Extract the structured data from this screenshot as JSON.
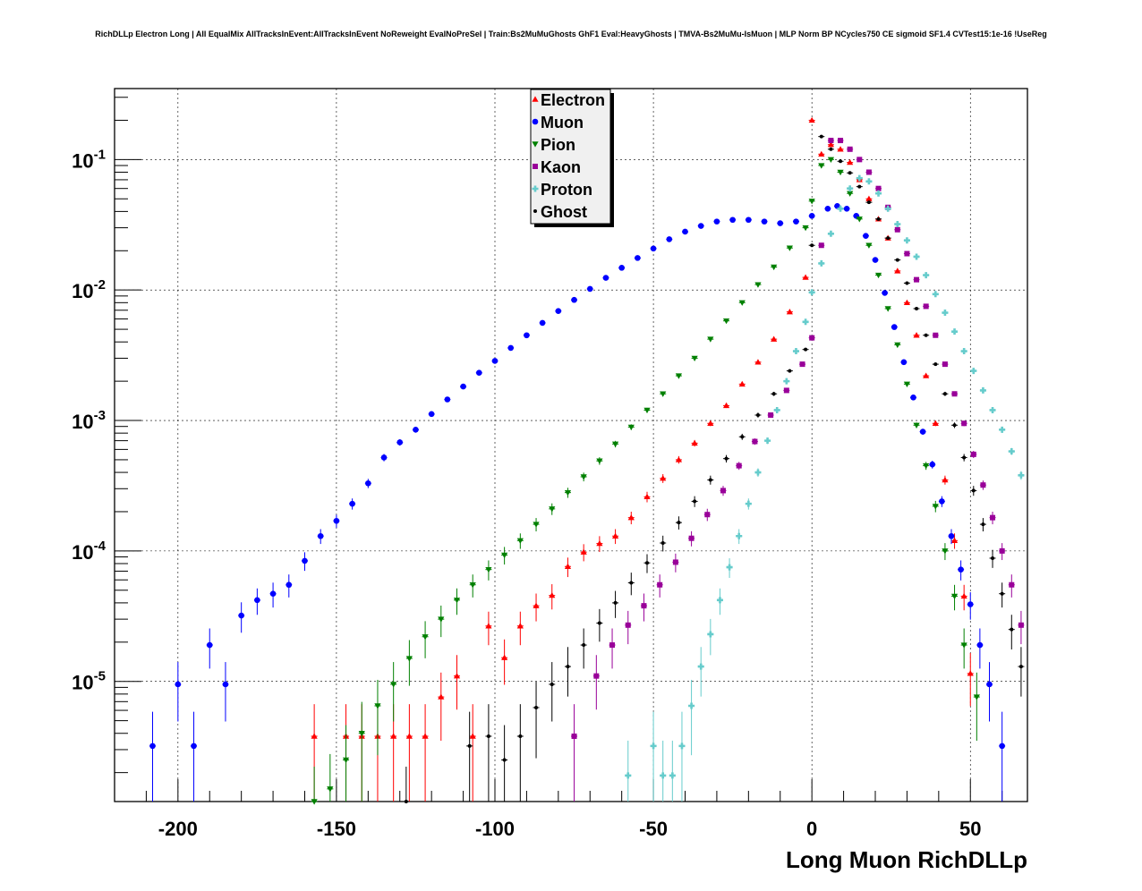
{
  "chart_data": {
    "type": "scatter",
    "title": "RichDLLp Electron Long | All EqualMix AllTracksInEvent:AllTracksInEvent NoReweight EvalNoPreSel | Train:Bs2MuMuGhosts GhF1 Eval:HeavyGhosts | TMVA-Bs2MuMu-IsMuon | MLP Norm BP NCycles750 CE sigmoid SF1.4 CVTest15:1e-16 !UseReg",
    "xlabel": "Long Muon RichDLLp",
    "ylabel": "",
    "xlim": [
      -220,
      68
    ],
    "ylim": [
      1.2e-06,
      0.35
    ],
    "yscale": "log",
    "grid": true,
    "legend_position": "top-center",
    "x_ticks": [
      -200,
      -150,
      -100,
      -50,
      0,
      50
    ],
    "x_tick_labels": [
      "-200",
      "-150",
      "-100",
      "-50",
      "0",
      "50"
    ],
    "y_ticks": [
      1e-05,
      0.0001,
      0.001,
      0.01,
      0.1
    ],
    "y_tick_labels": [
      {
        "base": "10",
        "exp": "-5"
      },
      {
        "base": "10",
        "exp": "-4"
      },
      {
        "base": "10",
        "exp": "-3"
      },
      {
        "base": "10",
        "exp": "-2"
      },
      {
        "base": "10",
        "exp": "-1"
      }
    ],
    "series": [
      {
        "name": "Electron",
        "color": "#ff0000",
        "marker": "triangle-up",
        "points": [
          [
            -157,
            3.8e-06
          ],
          [
            -147,
            3.8e-06
          ],
          [
            -142,
            3.8e-06
          ],
          [
            -137,
            3.8e-06
          ],
          [
            -132,
            3.8e-06
          ],
          [
            -127,
            3.8e-06
          ],
          [
            -122,
            3.8e-06
          ],
          [
            -117,
            7.6e-06
          ],
          [
            -112,
            1.1e-05
          ],
          [
            -107,
            3.8e-06
          ],
          [
            -102,
            2.66e-05
          ],
          [
            -97,
            1.52e-05
          ],
          [
            -92,
            2.66e-05
          ],
          [
            -87,
            3.8e-05
          ],
          [
            -82,
            4.56e-05
          ],
          [
            -77,
            7.6e-05
          ],
          [
            -72,
            9.8e-05
          ],
          [
            -67,
            0.000114
          ],
          [
            -62,
            0.00013
          ],
          [
            -57,
            0.00018
          ],
          [
            -52,
            0.00026
          ],
          [
            -47,
            0.00036
          ],
          [
            -42,
            0.0005
          ],
          [
            -37,
            0.00067
          ],
          [
            -32,
            0.00095
          ],
          [
            -27,
            0.0013
          ],
          [
            -22,
            0.0019
          ],
          [
            -17,
            0.0028
          ],
          [
            -12,
            0.0042
          ],
          [
            -7,
            0.0068
          ],
          [
            -2,
            0.0125
          ],
          [
            0,
            0.2
          ],
          [
            3,
            0.11
          ],
          [
            6,
            0.13
          ],
          [
            9,
            0.12
          ],
          [
            12,
            0.095
          ],
          [
            15,
            0.07
          ],
          [
            18,
            0.05
          ],
          [
            21,
            0.035
          ],
          [
            24,
            0.025
          ],
          [
            27,
            0.014
          ],
          [
            30,
            0.008
          ],
          [
            33,
            0.0045
          ],
          [
            36,
            0.0022
          ],
          [
            39,
            0.00095
          ],
          [
            42,
            0.00035
          ],
          [
            45,
            0.00012
          ],
          [
            48,
            4.5e-05
          ],
          [
            50,
            1.15e-05
          ]
        ]
      },
      {
        "name": "Muon",
        "color": "#0000ff",
        "marker": "circle",
        "points": [
          [
            -208,
            3.2e-06
          ],
          [
            -200,
            9.5e-06
          ],
          [
            -195,
            3.2e-06
          ],
          [
            -190,
            1.9e-05
          ],
          [
            -185,
            9.5e-06
          ],
          [
            -180,
            3.2e-05
          ],
          [
            -175,
            4.2e-05
          ],
          [
            -170,
            4.7e-05
          ],
          [
            -165,
            5.5e-05
          ],
          [
            -160,
            8.4e-05
          ],
          [
            -155,
            0.00013
          ],
          [
            -150,
            0.00017
          ],
          [
            -145,
            0.00023
          ],
          [
            -140,
            0.00033
          ],
          [
            -135,
            0.00052
          ],
          [
            -130,
            0.00068
          ],
          [
            -125,
            0.00085
          ],
          [
            -120,
            0.00112
          ],
          [
            -115,
            0.00145
          ],
          [
            -110,
            0.00182
          ],
          [
            -105,
            0.00232
          ],
          [
            -100,
            0.00286
          ],
          [
            -95,
            0.0036
          ],
          [
            -90,
            0.0045
          ],
          [
            -85,
            0.0056
          ],
          [
            -80,
            0.0069
          ],
          [
            -75,
            0.0084
          ],
          [
            -70,
            0.0102
          ],
          [
            -65,
            0.0124
          ],
          [
            -60,
            0.0148
          ],
          [
            -55,
            0.0176
          ],
          [
            -50,
            0.0208
          ],
          [
            -45,
            0.0245
          ],
          [
            -40,
            0.028
          ],
          [
            -35,
            0.031
          ],
          [
            -30,
            0.0335
          ],
          [
            -25,
            0.0345
          ],
          [
            -20,
            0.0345
          ],
          [
            -15,
            0.0335
          ],
          [
            -10,
            0.0325
          ],
          [
            -5,
            0.0335
          ],
          [
            0,
            0.037
          ],
          [
            5,
            0.042
          ],
          [
            8,
            0.044
          ],
          [
            11,
            0.042
          ],
          [
            14,
            0.037
          ],
          [
            17,
            0.026
          ],
          [
            20,
            0.017
          ],
          [
            23,
            0.0095
          ],
          [
            26,
            0.0052
          ],
          [
            29,
            0.0028
          ],
          [
            32,
            0.0015
          ],
          [
            35,
            0.00082
          ],
          [
            38,
            0.00046
          ],
          [
            41,
            0.00024
          ],
          [
            44,
            0.00013
          ],
          [
            47,
            7.2e-05
          ],
          [
            50,
            3.9e-05
          ],
          [
            53,
            1.9e-05
          ],
          [
            56,
            9.5e-06
          ],
          [
            60,
            3.2e-06
          ]
        ]
      },
      {
        "name": "Pion",
        "color": "#008000",
        "marker": "triangle-down",
        "points": [
          [
            -157,
            1.2e-06
          ],
          [
            -152,
            1.5e-06
          ],
          [
            -147,
            2.5e-06
          ],
          [
            -142,
            4e-06
          ],
          [
            -137,
            6.5e-06
          ],
          [
            -132,
            9.5e-06
          ],
          [
            -127,
            1.5e-05
          ],
          [
            -122,
            2.2e-05
          ],
          [
            -117,
            3e-05
          ],
          [
            -112,
            4.2e-05
          ],
          [
            -107,
            5.5e-05
          ],
          [
            -102,
            7.2e-05
          ],
          [
            -97,
            9.3e-05
          ],
          [
            -92,
            0.00012
          ],
          [
            -87,
            0.00016
          ],
          [
            -82,
            0.00021
          ],
          [
            -77,
            0.00028
          ],
          [
            -72,
            0.00037
          ],
          [
            -67,
            0.00049
          ],
          [
            -62,
            0.00066
          ],
          [
            -57,
            0.00089
          ],
          [
            -52,
            0.0012
          ],
          [
            -47,
            0.0016
          ],
          [
            -42,
            0.0022
          ],
          [
            -37,
            0.003
          ],
          [
            -32,
            0.0042
          ],
          [
            -27,
            0.0058
          ],
          [
            -22,
            0.008
          ],
          [
            -17,
            0.011
          ],
          [
            -12,
            0.015
          ],
          [
            -7,
            0.021
          ],
          [
            -2,
            0.03
          ],
          [
            0,
            0.048
          ],
          [
            3,
            0.09
          ],
          [
            6,
            0.1
          ],
          [
            9,
            0.08
          ],
          [
            12,
            0.055
          ],
          [
            15,
            0.035
          ],
          [
            18,
            0.022
          ],
          [
            21,
            0.013
          ],
          [
            24,
            0.0072
          ],
          [
            27,
            0.0038
          ],
          [
            30,
            0.0019
          ],
          [
            33,
            0.00092
          ],
          [
            36,
            0.00045
          ],
          [
            39,
            0.00022
          ],
          [
            42,
            0.0001
          ],
          [
            45,
            4.5e-05
          ],
          [
            48,
            1.9e-05
          ],
          [
            52,
            7.6e-06
          ]
        ]
      },
      {
        "name": "Kaon",
        "color": "#990099",
        "marker": "square",
        "points": [
          [
            -75,
            3.8e-06
          ],
          [
            -68,
            1.1e-05
          ],
          [
            -63,
            1.9e-05
          ],
          [
            -58,
            2.7e-05
          ],
          [
            -53,
            3.8e-05
          ],
          [
            -48,
            5.5e-05
          ],
          [
            -43,
            8.2e-05
          ],
          [
            -38,
            0.000125
          ],
          [
            -33,
            0.00019
          ],
          [
            -28,
            0.00029
          ],
          [
            -23,
            0.00045
          ],
          [
            -18,
            0.00069
          ],
          [
            -13,
            0.0011
          ],
          [
            -8,
            0.0017
          ],
          [
            -3,
            0.0027
          ],
          [
            0,
            0.0043
          ],
          [
            3,
            0.022
          ],
          [
            6,
            0.14
          ],
          [
            9,
            0.14
          ],
          [
            12,
            0.12
          ],
          [
            15,
            0.1
          ],
          [
            18,
            0.08
          ],
          [
            21,
            0.06
          ],
          [
            24,
            0.043
          ],
          [
            27,
            0.029
          ],
          [
            30,
            0.019
          ],
          [
            33,
            0.012
          ],
          [
            36,
            0.0075
          ],
          [
            39,
            0.0045
          ],
          [
            42,
            0.0027
          ],
          [
            45,
            0.0016
          ],
          [
            48,
            0.00095
          ],
          [
            51,
            0.00055
          ],
          [
            54,
            0.00032
          ],
          [
            57,
            0.00018
          ],
          [
            60,
            0.0001
          ],
          [
            63,
            5.5e-05
          ],
          [
            66,
            2.7e-05
          ]
        ]
      },
      {
        "name": "Proton",
        "color": "#66cccc",
        "marker": "cross",
        "points": [
          [
            -58,
            1.9e-06
          ],
          [
            -50,
            3.2e-06
          ],
          [
            -47,
            1.9e-06
          ],
          [
            -44,
            1.9e-06
          ],
          [
            -41,
            3.2e-06
          ],
          [
            -38,
            6.5e-06
          ],
          [
            -35,
            1.3e-05
          ],
          [
            -32,
            2.3e-05
          ],
          [
            -29,
            4.2e-05
          ],
          [
            -26,
            7.5e-05
          ],
          [
            -23,
            0.00013
          ],
          [
            -20,
            0.00023
          ],
          [
            -17,
            0.0004
          ],
          [
            -14,
            0.0007
          ],
          [
            -11,
            0.0012
          ],
          [
            -8,
            0.002
          ],
          [
            -5,
            0.0034
          ],
          [
            -2,
            0.0057
          ],
          [
            0,
            0.0096
          ],
          [
            3,
            0.016
          ],
          [
            6,
            0.027
          ],
          [
            9,
            0.042
          ],
          [
            12,
            0.06
          ],
          [
            15,
            0.072
          ],
          [
            18,
            0.068
          ],
          [
            21,
            0.055
          ],
          [
            24,
            0.042
          ],
          [
            27,
            0.032
          ],
          [
            30,
            0.024
          ],
          [
            33,
            0.018
          ],
          [
            36,
            0.013
          ],
          [
            39,
            0.0093
          ],
          [
            42,
            0.0067
          ],
          [
            45,
            0.0048
          ],
          [
            48,
            0.0034
          ],
          [
            51,
            0.0024
          ],
          [
            54,
            0.0017
          ],
          [
            57,
            0.0012
          ],
          [
            60,
            0.00085
          ],
          [
            63,
            0.00058
          ],
          [
            66,
            0.00038
          ]
        ]
      },
      {
        "name": "Ghost",
        "color": "#000000",
        "marker": "dot",
        "points": [
          [
            -128,
            1.2e-06
          ],
          [
            -108,
            3.2e-06
          ],
          [
            -102,
            3.8e-06
          ],
          [
            -97,
            2.5e-06
          ],
          [
            -92,
            3.8e-06
          ],
          [
            -87,
            6.3e-06
          ],
          [
            -82,
            9.5e-06
          ],
          [
            -77,
            1.3e-05
          ],
          [
            -72,
            1.9e-05
          ],
          [
            -67,
            2.8e-05
          ],
          [
            -62,
            4e-05
          ],
          [
            -57,
            5.7e-05
          ],
          [
            -52,
            8.1e-05
          ],
          [
            -47,
            0.000115
          ],
          [
            -42,
            0.000165
          ],
          [
            -37,
            0.00024
          ],
          [
            -32,
            0.00035
          ],
          [
            -27,
            0.00051
          ],
          [
            -22,
            0.00075
          ],
          [
            -17,
            0.0011
          ],
          [
            -12,
            0.0016
          ],
          [
            -7,
            0.0024
          ],
          [
            -2,
            0.0035
          ],
          [
            0,
            0.022
          ],
          [
            3,
            0.15
          ],
          [
            6,
            0.12
          ],
          [
            9,
            0.097
          ],
          [
            12,
            0.079
          ],
          [
            15,
            0.062
          ],
          [
            18,
            0.047
          ],
          [
            21,
            0.035
          ],
          [
            24,
            0.025
          ],
          [
            27,
            0.017
          ],
          [
            30,
            0.0113
          ],
          [
            33,
            0.0072
          ],
          [
            36,
            0.0045
          ],
          [
            39,
            0.0027
          ],
          [
            42,
            0.0016
          ],
          [
            45,
            0.00092
          ],
          [
            48,
            0.00052
          ],
          [
            51,
            0.00029
          ],
          [
            54,
            0.00016
          ],
          [
            57,
            8.8e-05
          ],
          [
            60,
            4.7e-05
          ],
          [
            63,
            2.5e-05
          ],
          [
            66,
            1.3e-05
          ]
        ]
      }
    ]
  }
}
